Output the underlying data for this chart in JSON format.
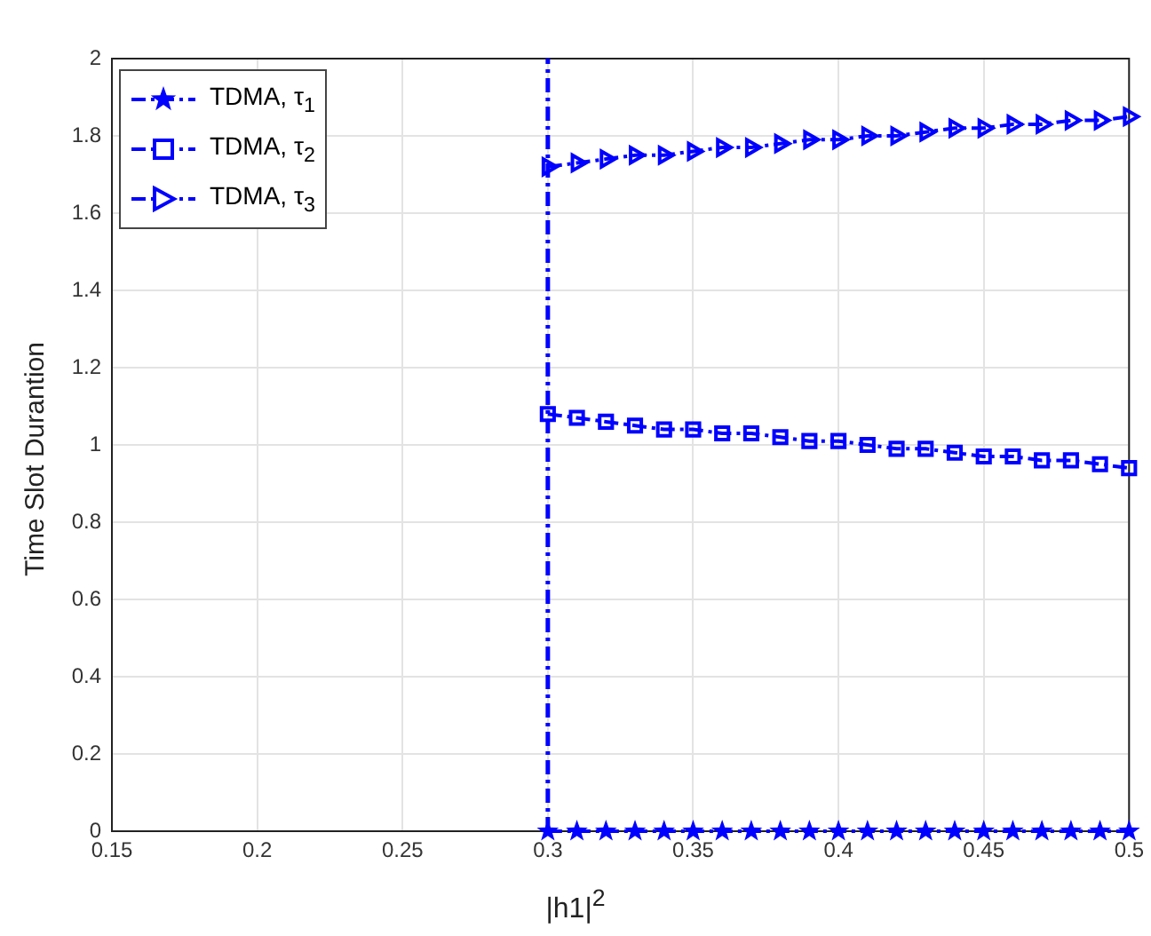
{
  "chart_data": {
    "type": "line",
    "xlabel": "|h1|$^{2}$",
    "ylabel": "Time Slot Durantion",
    "x": [
      0.3,
      0.31,
      0.32,
      0.33,
      0.34,
      0.35,
      0.36,
      0.37,
      0.38,
      0.39,
      0.4,
      0.41,
      0.42,
      0.43,
      0.44,
      0.45,
      0.46,
      0.47,
      0.48,
      0.49,
      0.5
    ],
    "series": [
      {
        "name": "TDMA, τ$_{1}$",
        "color": "#0000ff",
        "marker": "star",
        "values": [
          0,
          0,
          0,
          0,
          0,
          0,
          0,
          0,
          0,
          0,
          0,
          0,
          0,
          0,
          0,
          0,
          0,
          0,
          0,
          0,
          0
        ]
      },
      {
        "name": "TDMA, τ$_{2}$",
        "color": "#0000ff",
        "marker": "square",
        "values": [
          1.08,
          1.07,
          1.06,
          1.05,
          1.04,
          1.04,
          1.03,
          1.03,
          1.02,
          1.01,
          1.01,
          1.0,
          0.99,
          0.99,
          0.98,
          0.97,
          0.97,
          0.96,
          0.96,
          0.95,
          0.94
        ]
      },
      {
        "name": "TDMA, τ$_{3}$",
        "color": "#0000ff",
        "marker": "triangle",
        "values": [
          1.72,
          1.73,
          1.74,
          1.75,
          1.75,
          1.76,
          1.77,
          1.77,
          1.78,
          1.79,
          1.79,
          1.8,
          1.8,
          1.81,
          1.82,
          1.82,
          1.83,
          1.83,
          1.84,
          1.84,
          1.85
        ]
      }
    ],
    "ref_lines": [
      {
        "axis": "x",
        "value": 0.3,
        "color": "#0000ff",
        "line_style": "dashed"
      }
    ],
    "xlim": [
      0.15,
      0.5
    ],
    "xticks": [
      0.15,
      0.2,
      0.25,
      0.3,
      0.35,
      0.4,
      0.45,
      0.5
    ],
    "ylim": [
      0,
      2
    ],
    "yticks": [
      0,
      0.2,
      0.4,
      0.6,
      0.8,
      1,
      1.2,
      1.4,
      1.6,
      1.8,
      2
    ],
    "grid": true,
    "legend": "top left",
    "line_style": "dashed"
  }
}
